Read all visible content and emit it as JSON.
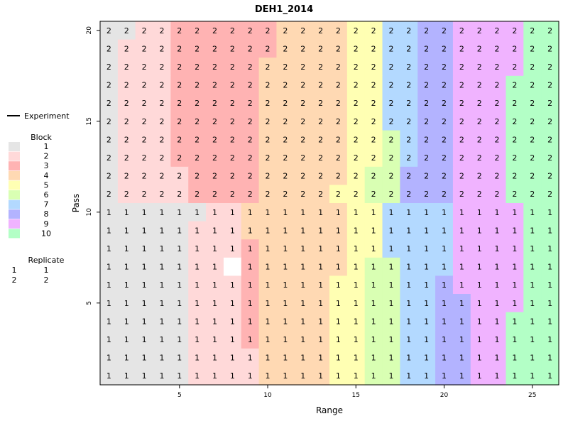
{
  "chart_data": {
    "type": "heatmap",
    "title": "DEH1_2014",
    "xlabel": "Range",
    "ylabel": "Pass",
    "xlim": [
      1,
      26
    ],
    "ylim": [
      1,
      20
    ],
    "xticks": [
      5,
      10,
      15,
      20,
      25
    ],
    "yticks": [
      5,
      10,
      15,
      20
    ],
    "legend": {
      "experiment_label": "Experiment",
      "block_title": "Block",
      "blocks": [
        {
          "label": "1",
          "color": "#e5e5e5"
        },
        {
          "label": "2",
          "color": "#ffd9d9"
        },
        {
          "label": "3",
          "color": "#ffb3b3"
        },
        {
          "label": "4",
          "color": "#ffd9b3"
        },
        {
          "label": "5",
          "color": "#ffffb3"
        },
        {
          "label": "6",
          "color": "#d9ffb3"
        },
        {
          "label": "7",
          "color": "#b3d9ff"
        },
        {
          "label": "8",
          "color": "#b3b3ff"
        },
        {
          "label": "9",
          "color": "#f0b3ff"
        },
        {
          "label": "10",
          "color": "#b3ffc6"
        }
      ],
      "replicate_title": "Replicate",
      "replicates": [
        {
          "symbol": "1",
          "label": "1"
        },
        {
          "symbol": "2",
          "label": "2"
        }
      ]
    },
    "missing_plots": [
      {
        "range": 8,
        "pass": 7
      }
    ],
    "block_rows": [
      [
        1,
        1,
        2,
        2,
        3,
        3,
        3,
        3,
        3,
        3,
        4,
        4,
        4,
        4,
        5,
        5,
        7,
        7,
        8,
        8,
        9,
        9,
        9,
        9,
        10,
        10
      ],
      [
        1,
        2,
        2,
        2,
        3,
        3,
        3,
        3,
        3,
        3,
        4,
        4,
        4,
        4,
        5,
        5,
        7,
        7,
        8,
        8,
        9,
        9,
        9,
        9,
        10,
        10
      ],
      [
        1,
        2,
        2,
        2,
        3,
        3,
        3,
        3,
        3,
        4,
        4,
        4,
        4,
        4,
        5,
        5,
        7,
        7,
        8,
        8,
        9,
        9,
        9,
        9,
        10,
        10
      ],
      [
        1,
        2,
        2,
        2,
        3,
        3,
        3,
        3,
        3,
        4,
        4,
        4,
        4,
        4,
        5,
        5,
        7,
        7,
        8,
        8,
        9,
        9,
        9,
        10,
        10,
        10
      ],
      [
        1,
        2,
        2,
        2,
        3,
        3,
        3,
        3,
        3,
        4,
        4,
        4,
        4,
        4,
        5,
        5,
        7,
        7,
        8,
        8,
        9,
        9,
        9,
        10,
        10,
        10
      ],
      [
        1,
        2,
        2,
        2,
        3,
        3,
        3,
        3,
        3,
        4,
        4,
        4,
        4,
        4,
        5,
        5,
        7,
        7,
        8,
        8,
        9,
        9,
        9,
        10,
        10,
        10
      ],
      [
        1,
        2,
        2,
        2,
        3,
        3,
        3,
        3,
        3,
        4,
        4,
        4,
        4,
        4,
        5,
        5,
        6,
        7,
        8,
        8,
        9,
        9,
        9,
        10,
        10,
        10
      ],
      [
        1,
        2,
        2,
        2,
        3,
        3,
        3,
        3,
        3,
        4,
        4,
        4,
        4,
        4,
        5,
        5,
        6,
        7,
        8,
        8,
        9,
        9,
        9,
        10,
        10,
        10
      ],
      [
        1,
        2,
        2,
        2,
        2,
        3,
        3,
        3,
        3,
        4,
        4,
        4,
        4,
        4,
        5,
        6,
        6,
        8,
        8,
        8,
        9,
        9,
        9,
        10,
        10,
        10
      ],
      [
        1,
        2,
        2,
        2,
        2,
        3,
        3,
        3,
        3,
        4,
        4,
        4,
        4,
        5,
        5,
        6,
        6,
        8,
        8,
        8,
        9,
        9,
        9,
        10,
        10,
        10
      ],
      [
        1,
        1,
        1,
        1,
        1,
        1,
        2,
        2,
        4,
        4,
        4,
        4,
        4,
        4,
        5,
        5,
        7,
        7,
        7,
        7,
        9,
        9,
        9,
        9,
        10,
        10
      ],
      [
        1,
        1,
        1,
        1,
        1,
        2,
        2,
        2,
        4,
        4,
        4,
        4,
        4,
        4,
        5,
        5,
        7,
        7,
        7,
        7,
        9,
        9,
        9,
        9,
        10,
        10
      ],
      [
        1,
        1,
        1,
        1,
        1,
        2,
        2,
        2,
        3,
        4,
        4,
        4,
        4,
        4,
        5,
        5,
        7,
        7,
        7,
        7,
        9,
        9,
        9,
        9,
        10,
        10
      ],
      [
        1,
        1,
        1,
        1,
        1,
        2,
        2,
        0,
        3,
        4,
        4,
        4,
        4,
        4,
        5,
        6,
        6,
        7,
        7,
        7,
        9,
        9,
        9,
        9,
        10,
        10
      ],
      [
        1,
        1,
        1,
        1,
        1,
        2,
        2,
        2,
        3,
        4,
        4,
        4,
        4,
        5,
        5,
        6,
        6,
        7,
        7,
        8,
        9,
        9,
        9,
        9,
        10,
        10
      ],
      [
        1,
        1,
        1,
        1,
        1,
        2,
        2,
        2,
        3,
        4,
        4,
        4,
        4,
        5,
        5,
        6,
        6,
        7,
        7,
        8,
        8,
        9,
        9,
        9,
        10,
        10
      ],
      [
        1,
        1,
        1,
        1,
        1,
        2,
        2,
        2,
        3,
        4,
        4,
        4,
        4,
        5,
        5,
        6,
        6,
        7,
        7,
        8,
        8,
        9,
        9,
        10,
        10,
        10
      ],
      [
        1,
        1,
        1,
        1,
        1,
        2,
        2,
        2,
        3,
        4,
        4,
        4,
        4,
        5,
        5,
        6,
        6,
        7,
        7,
        8,
        8,
        9,
        9,
        10,
        10,
        10
      ],
      [
        1,
        1,
        1,
        1,
        1,
        2,
        2,
        2,
        2,
        4,
        4,
        4,
        4,
        5,
        5,
        6,
        6,
        7,
        7,
        8,
        8,
        9,
        9,
        10,
        10,
        10
      ],
      [
        1,
        1,
        1,
        1,
        1,
        2,
        2,
        2,
        2,
        4,
        4,
        4,
        4,
        5,
        5,
        6,
        6,
        7,
        7,
        8,
        8,
        9,
        9,
        10,
        10,
        10
      ]
    ],
    "replicate_rows": [
      [
        2,
        2,
        2,
        2,
        2,
        2,
        2,
        2,
        2,
        2,
        2,
        2,
        2,
        2,
        2,
        2,
        2,
        2,
        2,
        2,
        2,
        2,
        2,
        2,
        2,
        2
      ],
      [
        2,
        2,
        2,
        2,
        2,
        2,
        2,
        2,
        2,
        2,
        2,
        2,
        2,
        2,
        2,
        2,
        2,
        2,
        2,
        2,
        2,
        2,
        2,
        2,
        2,
        2
      ],
      [
        2,
        2,
        2,
        2,
        2,
        2,
        2,
        2,
        2,
        2,
        2,
        2,
        2,
        2,
        2,
        2,
        2,
        2,
        2,
        2,
        2,
        2,
        2,
        2,
        2,
        2
      ],
      [
        2,
        2,
        2,
        2,
        2,
        2,
        2,
        2,
        2,
        2,
        2,
        2,
        2,
        2,
        2,
        2,
        2,
        2,
        2,
        2,
        2,
        2,
        2,
        2,
        2,
        2
      ],
      [
        2,
        2,
        2,
        2,
        2,
        2,
        2,
        2,
        2,
        2,
        2,
        2,
        2,
        2,
        2,
        2,
        2,
        2,
        2,
        2,
        2,
        2,
        2,
        2,
        2,
        2
      ],
      [
        2,
        2,
        2,
        2,
        2,
        2,
        2,
        2,
        2,
        2,
        2,
        2,
        2,
        2,
        2,
        2,
        2,
        2,
        2,
        2,
        2,
        2,
        2,
        2,
        2,
        2
      ],
      [
        2,
        2,
        2,
        2,
        2,
        2,
        2,
        2,
        2,
        2,
        2,
        2,
        2,
        2,
        2,
        2,
        2,
        2,
        2,
        2,
        2,
        2,
        2,
        2,
        2,
        2
      ],
      [
        2,
        2,
        2,
        2,
        2,
        2,
        2,
        2,
        2,
        2,
        2,
        2,
        2,
        2,
        2,
        2,
        2,
        2,
        2,
        2,
        2,
        2,
        2,
        2,
        2,
        2
      ],
      [
        2,
        2,
        2,
        2,
        2,
        2,
        2,
        2,
        2,
        2,
        2,
        2,
        2,
        2,
        2,
        2,
        2,
        2,
        2,
        2,
        2,
        2,
        2,
        2,
        2,
        2
      ],
      [
        2,
        2,
        2,
        2,
        2,
        2,
        2,
        2,
        2,
        2,
        2,
        2,
        2,
        2,
        2,
        2,
        2,
        2,
        2,
        2,
        2,
        2,
        2,
        2,
        2,
        2
      ],
      [
        1,
        1,
        1,
        1,
        1,
        1,
        1,
        1,
        1,
        1,
        1,
        1,
        1,
        1,
        1,
        1,
        1,
        1,
        1,
        1,
        1,
        1,
        1,
        1,
        1,
        1
      ],
      [
        1,
        1,
        1,
        1,
        1,
        1,
        1,
        1,
        1,
        1,
        1,
        1,
        1,
        1,
        1,
        1,
        1,
        1,
        1,
        1,
        1,
        1,
        1,
        1,
        1,
        1
      ],
      [
        1,
        1,
        1,
        1,
        1,
        1,
        1,
        1,
        1,
        1,
        1,
        1,
        1,
        1,
        1,
        1,
        1,
        1,
        1,
        1,
        1,
        1,
        1,
        1,
        1,
        1
      ],
      [
        1,
        1,
        1,
        1,
        1,
        1,
        1,
        0,
        1,
        1,
        1,
        1,
        1,
        1,
        1,
        1,
        1,
        1,
        1,
        1,
        1,
        1,
        1,
        1,
        1,
        1
      ],
      [
        1,
        1,
        1,
        1,
        1,
        1,
        1,
        1,
        1,
        1,
        1,
        1,
        1,
        1,
        1,
        1,
        1,
        1,
        1,
        1,
        1,
        1,
        1,
        1,
        1,
        1
      ],
      [
        1,
        1,
        1,
        1,
        1,
        1,
        1,
        1,
        1,
        1,
        1,
        1,
        1,
        1,
        1,
        1,
        1,
        1,
        1,
        1,
        1,
        1,
        1,
        1,
        1,
        1
      ],
      [
        1,
        1,
        1,
        1,
        1,
        1,
        1,
        1,
        1,
        1,
        1,
        1,
        1,
        1,
        1,
        1,
        1,
        1,
        1,
        1,
        1,
        1,
        1,
        1,
        1,
        1
      ],
      [
        1,
        1,
        1,
        1,
        1,
        1,
        1,
        1,
        1,
        1,
        1,
        1,
        1,
        1,
        1,
        1,
        1,
        1,
        1,
        1,
        1,
        1,
        1,
        1,
        1,
        1
      ],
      [
        1,
        1,
        1,
        1,
        1,
        1,
        1,
        1,
        1,
        1,
        1,
        1,
        1,
        1,
        1,
        1,
        1,
        1,
        1,
        1,
        1,
        1,
        1,
        1,
        1,
        1
      ],
      [
        1,
        1,
        1,
        1,
        1,
        1,
        1,
        1,
        1,
        1,
        1,
        1,
        1,
        1,
        1,
        1,
        1,
        1,
        1,
        1,
        1,
        1,
        1,
        1,
        1,
        1
      ]
    ]
  }
}
